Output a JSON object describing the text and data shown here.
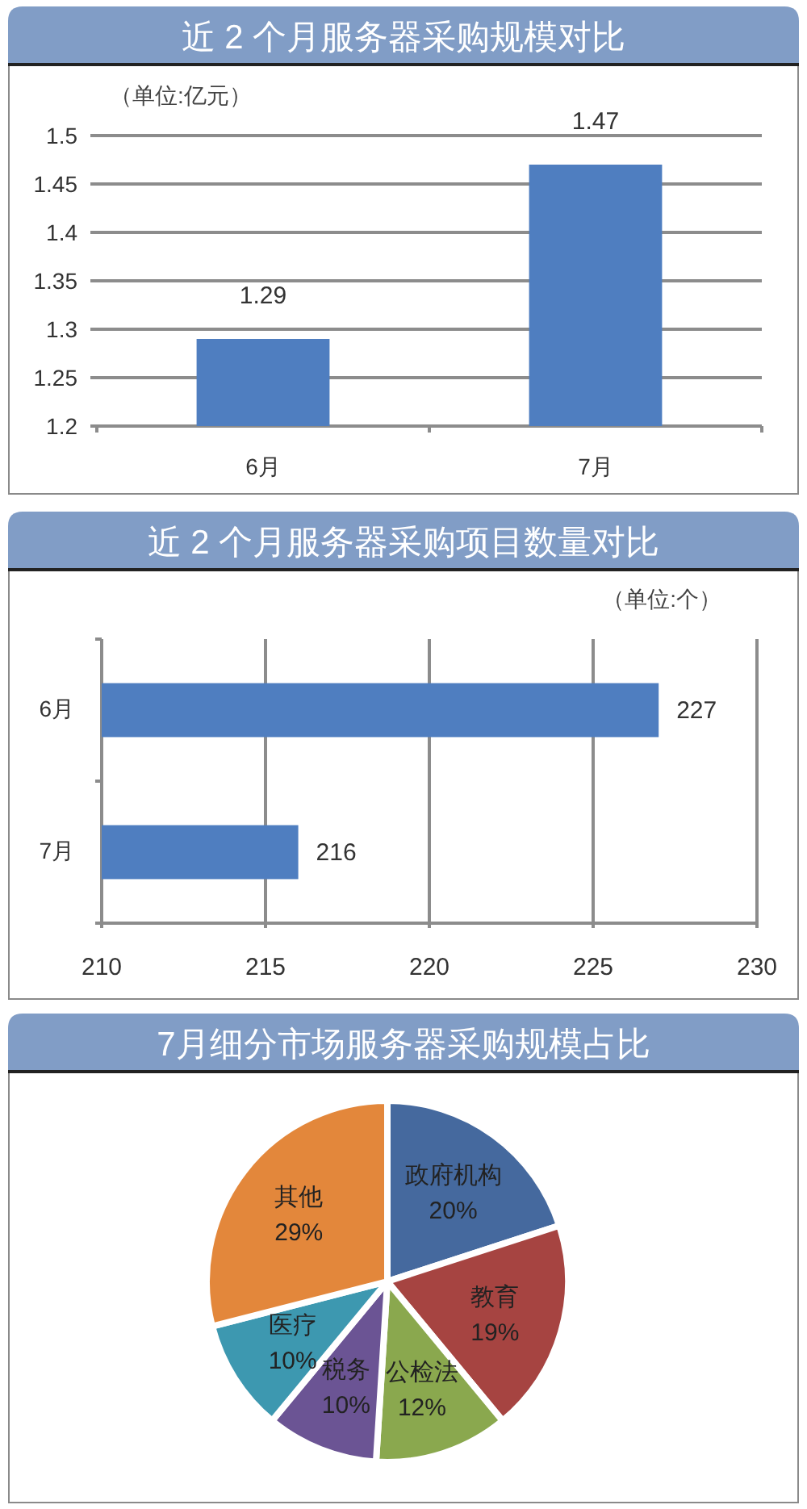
{
  "chart_data": [
    {
      "type": "bar",
      "title": "近 2 个月服务器采购规模对比",
      "ylabel": "（单位:亿元）",
      "categories": [
        "6月",
        "7月"
      ],
      "values": [
        1.29,
        1.47
      ],
      "color": "#4f7ec0",
      "ylim": [
        1.2,
        1.5
      ],
      "yticks": [
        1.2,
        1.25,
        1.3,
        1.35,
        1.4,
        1.45,
        1.5
      ],
      "grid": "y",
      "data_labels": true
    },
    {
      "type": "bar",
      "orientation": "horizontal",
      "title": "近 2 个月服务器采购项目数量对比",
      "xlabel": "（单位:个）",
      "categories": [
        "6月",
        "7月"
      ],
      "values": [
        227,
        216
      ],
      "color": "#4f7ec0",
      "xlim": [
        210,
        230
      ],
      "xticks": [
        210,
        215,
        220,
        225,
        230
      ],
      "grid": "x",
      "data_labels": true
    },
    {
      "type": "pie",
      "title": "7月细分市场服务器采购规模占比",
      "categories": [
        "政府机构",
        "教育",
        "公检法",
        "税务",
        "医疗",
        "其他"
      ],
      "values": [
        20,
        19,
        12,
        10,
        10,
        29
      ],
      "colors": [
        "#45699e",
        "#a64441",
        "#8aa84e",
        "#6b5494",
        "#3d98b0",
        "#e3873b"
      ],
      "value_labels": [
        "20%",
        "19%",
        "12%",
        "10%",
        "10%",
        "29%"
      ]
    }
  ]
}
